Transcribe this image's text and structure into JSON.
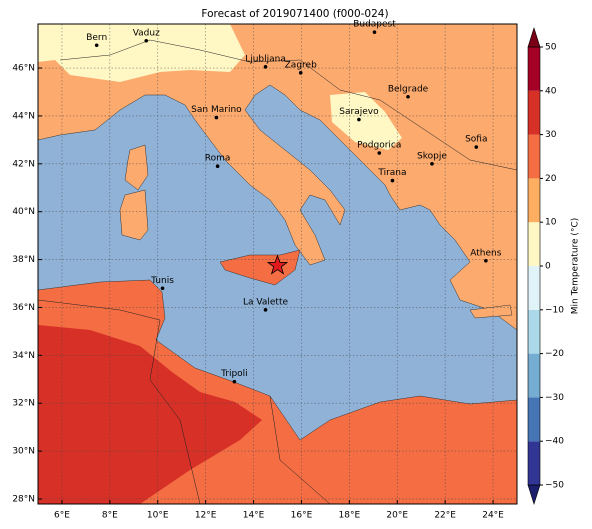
{
  "chart_data": {
    "type": "map",
    "title": "Forecast of 2019071400 (f000-024)",
    "xlim": [
      5,
      25
    ],
    "ylim": [
      27.79,
      47.84
    ],
    "xticks": [
      {
        "value": 6,
        "label": "6°E"
      },
      {
        "value": 8,
        "label": "8°E"
      },
      {
        "value": 10,
        "label": "10°E"
      },
      {
        "value": 12,
        "label": "12°E"
      },
      {
        "value": 14,
        "label": "14°E"
      },
      {
        "value": 16,
        "label": "16°E"
      },
      {
        "value": 18,
        "label": "18°E"
      },
      {
        "value": 20,
        "label": "20°E"
      },
      {
        "value": 22,
        "label": "22°E"
      },
      {
        "value": 24,
        "label": "24°E"
      }
    ],
    "yticks": [
      {
        "value": 28,
        "label": "28°N"
      },
      {
        "value": 30,
        "label": "30°N"
      },
      {
        "value": 32,
        "label": "32°N"
      },
      {
        "value": 34,
        "label": "34°N"
      },
      {
        "value": 36,
        "label": "36°N"
      },
      {
        "value": 38,
        "label": "38°N"
      },
      {
        "value": 40,
        "label": "40°N"
      },
      {
        "value": 42,
        "label": "42°N"
      },
      {
        "value": 44,
        "label": "44°N"
      },
      {
        "value": 46,
        "label": "46°N"
      }
    ],
    "grid": true,
    "cities": [
      {
        "name": "Bern",
        "lon": 7.45,
        "lat": 46.95
      },
      {
        "name": "Vaduz",
        "lon": 9.52,
        "lat": 47.14
      },
      {
        "name": "Budapest",
        "lon": 19.05,
        "lat": 47.5
      },
      {
        "name": "Ljubljana",
        "lon": 14.5,
        "lat": 46.05
      },
      {
        "name": "Zagreb",
        "lon": 15.97,
        "lat": 45.8
      },
      {
        "name": "Belgrade",
        "lon": 20.45,
        "lat": 44.8
      },
      {
        "name": "San Marino",
        "lon": 12.45,
        "lat": 43.93
      },
      {
        "name": "Sarajevo",
        "lon": 18.4,
        "lat": 43.85
      },
      {
        "name": "Sofia",
        "lon": 23.3,
        "lat": 42.7
      },
      {
        "name": "Podgorica",
        "lon": 19.25,
        "lat": 42.45
      },
      {
        "name": "Skopje",
        "lon": 21.45,
        "lat": 42.0
      },
      {
        "name": "Roma",
        "lon": 12.5,
        "lat": 41.9
      },
      {
        "name": "Tirana",
        "lon": 19.8,
        "lat": 41.3
      },
      {
        "name": "Athens",
        "lon": 23.7,
        "lat": 37.95
      },
      {
        "name": "Tunis",
        "lon": 10.2,
        "lat": 36.8
      },
      {
        "name": "La Valette",
        "lon": 14.5,
        "lat": 35.9
      },
      {
        "name": "Tripoli",
        "lon": 13.2,
        "lat": 32.9
      }
    ],
    "star": {
      "lon": 15.0,
      "lat": 37.75,
      "color": "#e31a1c"
    },
    "colorbar": {
      "label": "Min Temperature (°C)",
      "lim": [
        -50,
        50
      ],
      "ticks": [
        {
          "value": -50,
          "label": "−50"
        },
        {
          "value": -40,
          "label": "−40"
        },
        {
          "value": -30,
          "label": "−30"
        },
        {
          "value": -20,
          "label": "−20"
        },
        {
          "value": -10,
          "label": "−10"
        },
        0,
        10,
        20,
        30,
        40,
        50
      ],
      "colors": [
        "#313695",
        "#4575b4",
        "#74add1",
        "#abd9e9",
        "#e0f3f8",
        "#fff7c4",
        "#fdae61",
        "#f46d43",
        "#d73027",
        "#a50026"
      ],
      "under_color": "#1c1f6e",
      "over_color": "#7a0016"
    }
  }
}
